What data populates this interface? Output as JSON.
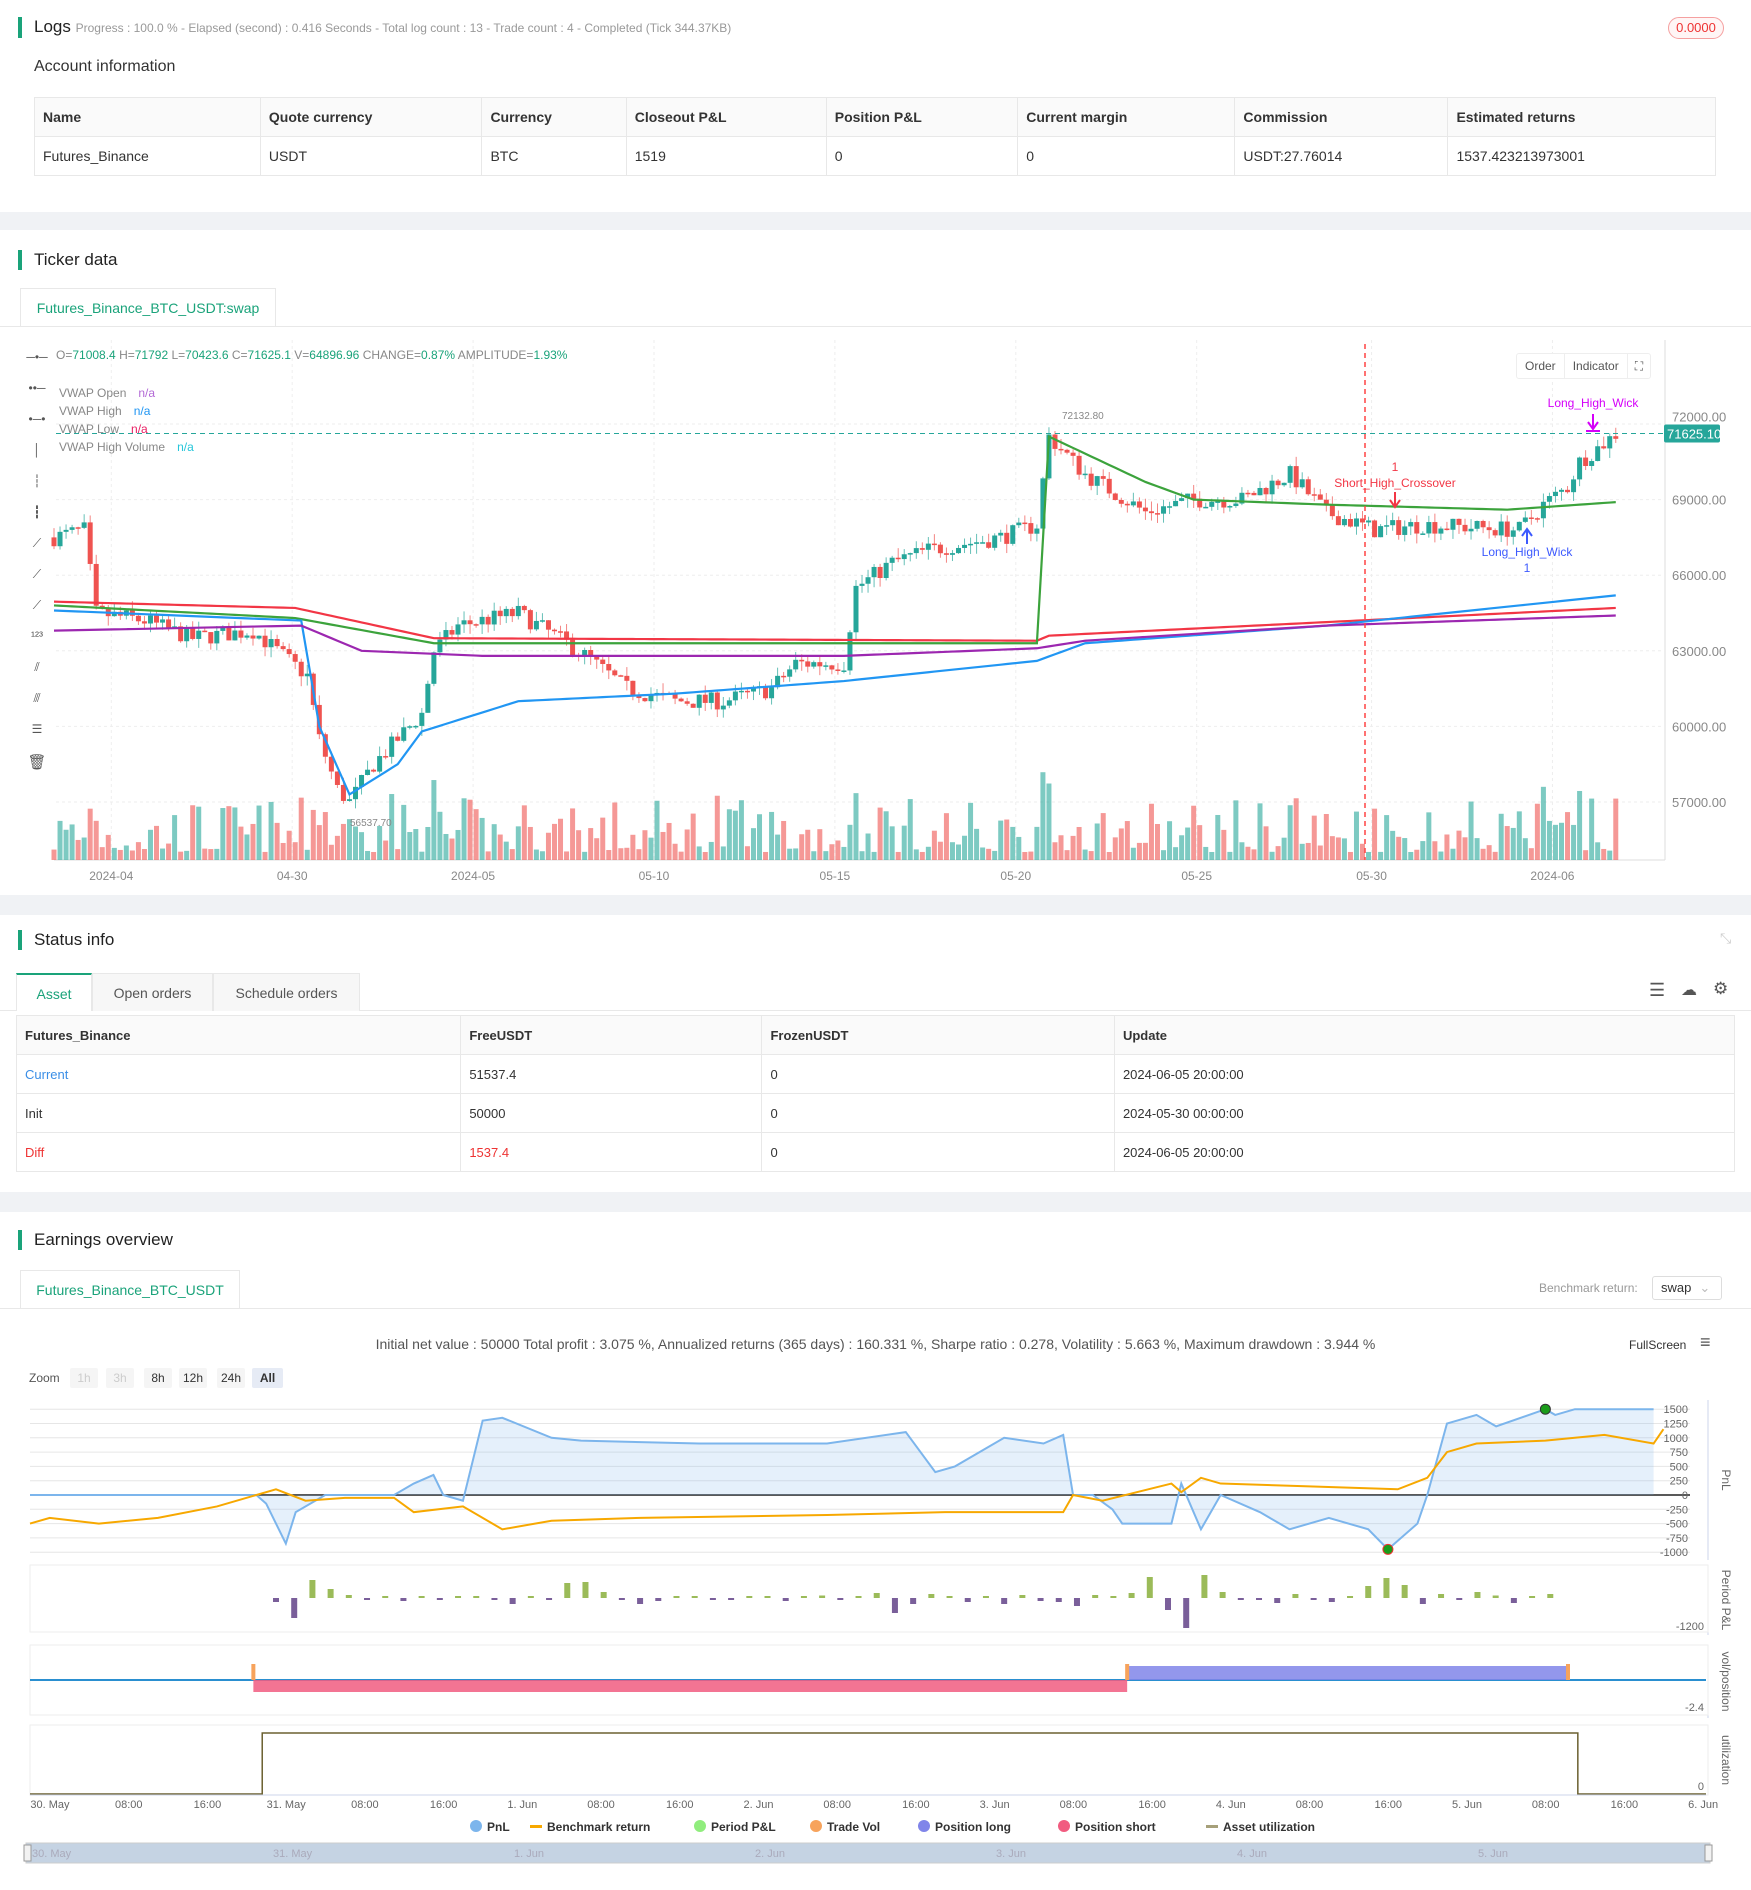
{
  "logs": {
    "title": "Logs",
    "progress": "Progress : 100.0 % - Elapsed (second) : 0.416  Seconds - Total log count : 13 - Trade count : 4 - Completed (Tick 344.37KB)",
    "badge": "0.0000"
  },
  "account": {
    "title": "Account information",
    "headers": [
      "Name",
      "Quote currency",
      "Currency",
      "Closeout P&L",
      "Position P&L",
      "Current margin",
      "Commission",
      "Estimated returns"
    ],
    "row": [
      "Futures_Binance",
      "USDT",
      "BTC",
      "1519",
      "0",
      "0",
      "USDT:27.76014",
      "1537.423213973001"
    ]
  },
  "ticker": {
    "title": "Ticker data",
    "tab": "Futures_Binance_BTC_USDT:swap",
    "ohlc": {
      "o_label": "O=",
      "o": "71008.4",
      "h_label": " H=",
      "h": "71792",
      "l_label": " L=",
      "l": "70423.6",
      "c_label": " C=",
      "c": "71625.1",
      "v_label": " V=",
      "v": "64896.96",
      "change_label": " CHANGE=",
      "change": "0.87%",
      "amp_label": " AMPLITUDE=",
      "amp": "1.93%"
    },
    "legend": [
      {
        "name": "VWAP Open",
        "value": "n/a",
        "color": "#b36ad6"
      },
      {
        "name": "VWAP High",
        "value": "n/a",
        "color": "#2196f3"
      },
      {
        "name": "VWAP Low",
        "value": "n/a",
        "color": "#e91e63"
      },
      {
        "name": "VWAP High Volume",
        "value": "n/a",
        "color": "#26c6da"
      }
    ],
    "buttons": {
      "order": "Order",
      "indicator": "Indicator"
    },
    "last_price": "71625.10",
    "high_mark": "72132.80",
    "low_mark": "56537.70",
    "annotations": {
      "short": "Short_High_Crossover",
      "short_n": "1",
      "long1": "Long_High_Wick",
      "long1_n": "1",
      "long2": "Long_High_Wick"
    }
  },
  "price_chart": {
    "type": "candlestick",
    "y_ticks": [
      "72000.00",
      "69000.00",
      "66000.00",
      "63000.00",
      "60000.00",
      "57000.00"
    ],
    "y_tick_values": [
      72000,
      69000,
      66000,
      63000,
      60000,
      57000
    ],
    "x_ticks": [
      "2024-04",
      "04-30",
      "2024-05",
      "05-10",
      "05-15",
      "05-20",
      "05-25",
      "05-30",
      "2024-06"
    ],
    "x_tick_bars": [
      9.5,
      39.5,
      69.5,
      99.5,
      129.5,
      159.5,
      189.5,
      218.5,
      248.5
    ],
    "close_path": [
      [
        0,
        67500
      ],
      [
        5,
        67800
      ],
      [
        7,
        64500
      ],
      [
        15,
        64200
      ],
      [
        23,
        63500
      ],
      [
        33,
        63800
      ],
      [
        42,
        62000
      ],
      [
        44,
        59500
      ],
      [
        47,
        57500
      ],
      [
        49,
        57000
      ],
      [
        53,
        58500
      ],
      [
        61,
        60500
      ],
      [
        63,
        63000
      ],
      [
        67,
        64000
      ],
      [
        77,
        64500
      ],
      [
        87,
        63000
      ],
      [
        95,
        61500
      ],
      [
        103,
        61000
      ],
      [
        111,
        61000
      ],
      [
        119,
        61500
      ],
      [
        123,
        62500
      ],
      [
        131,
        62500
      ],
      [
        133,
        65500
      ],
      [
        139,
        66500
      ],
      [
        145,
        67000
      ],
      [
        157,
        67500
      ],
      [
        163,
        68000
      ],
      [
        165,
        71500
      ],
      [
        171,
        70000
      ],
      [
        181,
        68500
      ],
      [
        189,
        69000
      ],
      [
        197,
        69000
      ],
      [
        205,
        70000
      ],
      [
        211,
        68500
      ],
      [
        219,
        67800
      ],
      [
        227,
        68000
      ],
      [
        243,
        67800
      ],
      [
        247,
        68800
      ],
      [
        251,
        69500
      ],
      [
        253,
        70500
      ],
      [
        259,
        71600
      ]
    ],
    "vwap_lines": [
      {
        "name": "red",
        "color": "#f23645",
        "points": [
          [
            0,
            64950
          ],
          [
            40,
            64700
          ],
          [
            63,
            63500
          ],
          [
            163,
            63400
          ],
          [
            165,
            63600
          ],
          [
            259,
            64700
          ]
        ]
      },
      {
        "name": "green",
        "color": "#3ca33c",
        "points": [
          [
            0,
            64800
          ],
          [
            40,
            64300
          ],
          [
            63,
            63300
          ],
          [
            163,
            63300
          ],
          [
            165,
            71500
          ],
          [
            181,
            69700
          ],
          [
            189,
            69000
          ],
          [
            211,
            68800
          ],
          [
            241,
            68600
          ],
          [
            259,
            68900
          ]
        ]
      },
      {
        "name": "blue",
        "color": "#2196f3",
        "points": [
          [
            0,
            64600
          ],
          [
            41,
            64200
          ],
          [
            44,
            60000
          ],
          [
            49,
            57300
          ],
          [
            57,
            58500
          ],
          [
            61,
            59800
          ],
          [
            77,
            61000
          ],
          [
            103,
            61300
          ],
          [
            131,
            61800
          ],
          [
            163,
            62600
          ],
          [
            171,
            63300
          ],
          [
            211,
            64000
          ],
          [
            259,
            65200
          ]
        ]
      },
      {
        "name": "purple",
        "color": "#9c27b0",
        "points": [
          [
            0,
            63800
          ],
          [
            41,
            64000
          ],
          [
            51,
            63000
          ],
          [
            71,
            62800
          ],
          [
            131,
            62800
          ],
          [
            163,
            63100
          ],
          [
            171,
            63400
          ],
          [
            211,
            64000
          ],
          [
            259,
            64400
          ]
        ]
      }
    ],
    "colors": {
      "up": "#26a69a",
      "down": "#ef5350"
    }
  },
  "status": {
    "title": "Status info",
    "tabs": [
      "Asset",
      "Open orders",
      "Schedule orders"
    ],
    "headers": [
      "Futures_Binance",
      "FreeUSDT",
      "FrozenUSDT",
      "Update"
    ],
    "rows": [
      [
        "Current",
        "51537.4",
        "0",
        "2024-06-05 20:00:00"
      ],
      [
        "Init",
        "50000",
        "0",
        "2024-05-30 00:00:00"
      ],
      [
        "Diff",
        "1537.4",
        "0",
        "2024-06-05 20:00:00"
      ]
    ]
  },
  "earnings": {
    "title": "Earnings overview",
    "tab": "Futures_Binance_BTC_USDT",
    "benchmark_label": "Benchmark return:",
    "benchmark_value": "swap",
    "stats": "Initial net value : 50000 Total profit : 3.075 %, Annualized returns (365 days) : 160.331 %, Sharpe ratio : 0.278, Volatility : 5.663 %, Maximum drawdown : 3.944 %",
    "fullscreen": "FullScreen",
    "zoom_label": "Zoom",
    "zoom_buttons": [
      "1h",
      "3h",
      "8h",
      "12h",
      "24h",
      "All"
    ],
    "axis_titles": [
      "PnL",
      "Period P&L",
      "vol/position",
      "utilization"
    ],
    "legend": [
      {
        "name": "PnL",
        "color": "#7cb5ec"
      },
      {
        "name": "Benchmark return",
        "color": "#f7a800"
      },
      {
        "name": "Period P&L",
        "color": "#90ed7d"
      },
      {
        "name": "Trade Vol",
        "color": "#f7a35c"
      },
      {
        "name": "Position long",
        "color": "#8085e9"
      },
      {
        "name": "Position short",
        "color": "#f15c80"
      },
      {
        "name": "Asset utilization",
        "color": "#a6a07a"
      }
    ],
    "x_ticks": [
      "30. May",
      "08:00",
      "16:00",
      "31. May",
      "08:00",
      "16:00",
      "1. Jun",
      "08:00",
      "16:00",
      "2. Jun",
      "08:00",
      "16:00",
      "3. Jun",
      "08:00",
      "16:00",
      "4. Jun",
      "08:00",
      "16:00",
      "5. Jun",
      "08:00",
      "16:00",
      "6. Jun"
    ],
    "nav_ticks": [
      "30. May",
      "31. May",
      "1. Jun",
      "2. Jun",
      "3. Jun",
      "4. Jun",
      "5. Jun"
    ]
  },
  "chart_data": [
    {
      "type": "line",
      "title": "PnL",
      "x_unit": "hours since 30 May 00:00",
      "ylim": [
        -1000,
        1500
      ],
      "y_ticks": [
        "1500",
        "1250",
        "1000",
        "750",
        "500",
        "250",
        "0",
        "-250",
        "-500",
        "-750",
        "-1000"
      ],
      "y_tick_values": [
        1500,
        1250,
        1000,
        750,
        500,
        250,
        0,
        -250,
        -500,
        -750,
        -1000
      ],
      "series": [
        {
          "name": "PnL",
          "color": "#7cb5ec",
          "points": [
            [
              0,
              0
            ],
            [
              23,
              0
            ],
            [
              24,
              -150
            ],
            [
              26,
              -850
            ],
            [
              27,
              -300
            ],
            [
              30,
              0
            ],
            [
              37,
              0
            ],
            [
              39,
              200
            ],
            [
              41,
              350
            ],
            [
              42,
              0
            ],
            [
              44,
              -100
            ],
            [
              46,
              1300
            ],
            [
              48,
              1350
            ],
            [
              53,
              1000
            ],
            [
              56,
              950
            ],
            [
              68,
              900
            ],
            [
              81,
              900
            ],
            [
              89,
              1100
            ],
            [
              92,
              400
            ],
            [
              94,
              500
            ],
            [
              99,
              1000
            ],
            [
              103,
              900
            ],
            [
              105,
              1050
            ],
            [
              106,
              0
            ],
            [
              108,
              0
            ],
            [
              110,
              -250
            ],
            [
              111,
              -500
            ],
            [
              116,
              -500
            ],
            [
              117,
              200
            ],
            [
              119,
              -600
            ],
            [
              121,
              0
            ],
            [
              125,
              -300
            ],
            [
              128,
              -600
            ],
            [
              132,
              -400
            ],
            [
              136,
              -600
            ],
            [
              138,
              -950
            ],
            [
              141,
              -500
            ],
            [
              142,
              0
            ],
            [
              144,
              1250
            ],
            [
              147,
              1400
            ],
            [
              149,
              1200
            ],
            [
              154,
              1500
            ],
            [
              155,
              1400
            ],
            [
              157,
              1500
            ],
            [
              165,
              1500
            ]
          ]
        },
        {
          "name": "Benchmark return",
          "color": "#f7a800",
          "points": [
            [
              0,
              -500
            ],
            [
              2,
              -400
            ],
            [
              7,
              -500
            ],
            [
              13,
              -400
            ],
            [
              19,
              -200
            ],
            [
              25,
              100
            ],
            [
              28,
              -100
            ],
            [
              32,
              -50
            ],
            [
              37,
              -50
            ],
            [
              39,
              -300
            ],
            [
              44,
              -200
            ],
            [
              48,
              -600
            ],
            [
              53,
              -450
            ],
            [
              62,
              -400
            ],
            [
              81,
              -350
            ],
            [
              93,
              -300
            ],
            [
              105,
              -300
            ],
            [
              106,
              0
            ],
            [
              109,
              -100
            ],
            [
              116,
              200
            ],
            [
              117,
              50
            ],
            [
              119,
              300
            ],
            [
              121,
              200
            ],
            [
              130,
              150
            ],
            [
              139,
              100
            ],
            [
              142,
              300
            ],
            [
              144,
              750
            ],
            [
              147,
              900
            ],
            [
              154,
              950
            ],
            [
              160,
              1050
            ],
            [
              165,
              900
            ],
            [
              166,
              1150
            ]
          ]
        }
      ]
    },
    {
      "type": "bar",
      "title": "Period P&L",
      "x_start": 25,
      "x_step": 1.85,
      "y_min_label": "-1200",
      "values": [
        -40,
        -200,
        180,
        90,
        30,
        -20,
        15,
        -30,
        10,
        -20,
        20,
        15,
        -10,
        -60,
        10,
        -5,
        150,
        160,
        60,
        -20,
        -60,
        -30,
        15,
        10,
        -10,
        -5,
        10,
        5,
        -30,
        15,
        25,
        -10,
        20,
        50,
        -150,
        -60,
        40,
        15,
        -40,
        20,
        -60,
        30,
        -30,
        -40,
        -80,
        30,
        20,
        50,
        210,
        -120,
        -300,
        230,
        60,
        -20,
        -10,
        -50,
        40,
        -20,
        -40,
        10,
        120,
        200,
        130,
        -60,
        40,
        -20,
        60,
        25,
        -50,
        0,
        40
      ]
    },
    {
      "type": "area",
      "title": "vol/position",
      "y_min_label": "-2.4",
      "segments": [
        {
          "name": "Position short",
          "from": 22.7,
          "to": 111.5,
          "value": -1
        },
        {
          "name": "Position long",
          "from": 111.5,
          "to": 156.3,
          "value": 1
        }
      ]
    },
    {
      "type": "line",
      "title": "utilization",
      "y_min_label": "0",
      "from": 23.6,
      "to": 157.3
    }
  ]
}
